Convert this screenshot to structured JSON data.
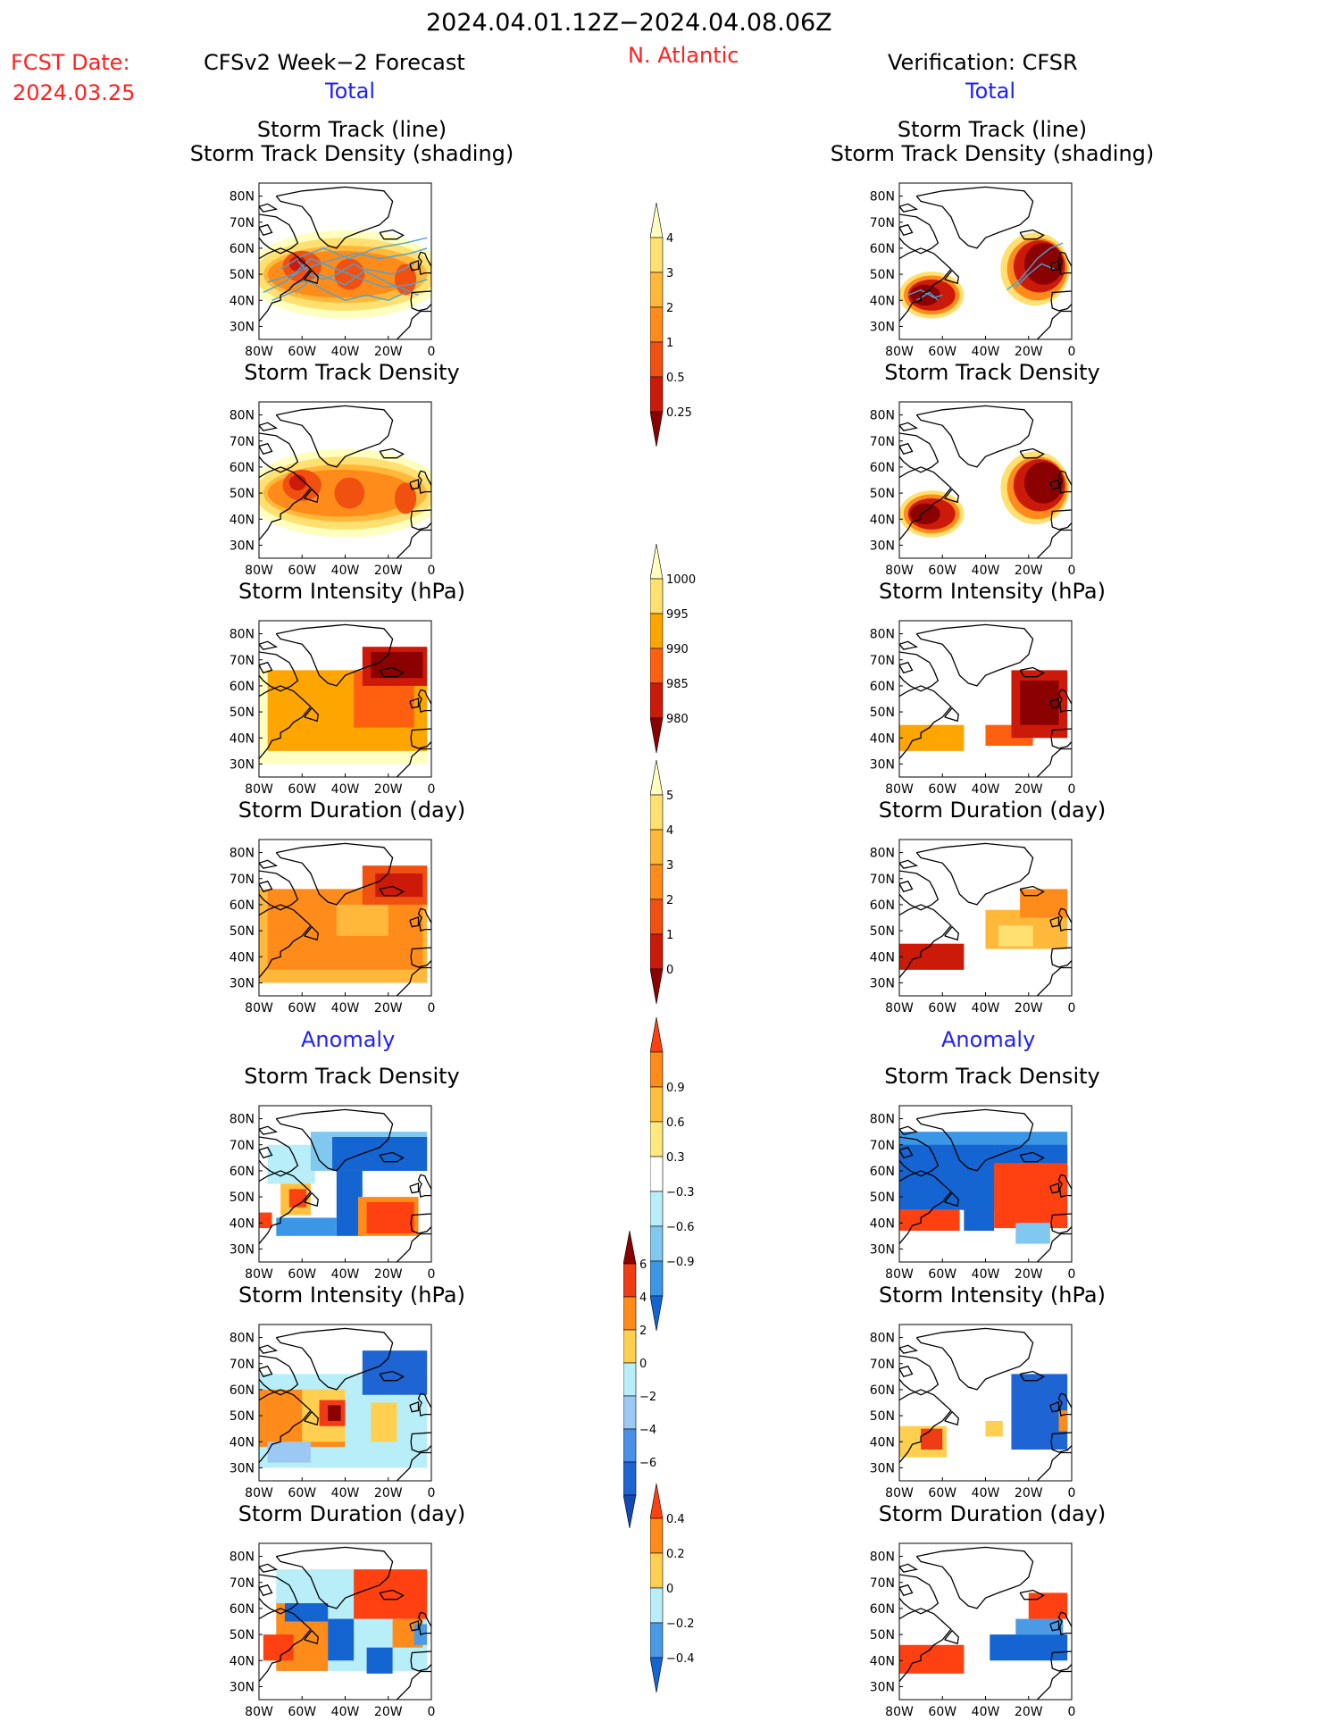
{
  "header": {
    "period": "2024.04.01.12Z−2024.04.08.06Z",
    "fcst_label": "FCST Date:",
    "fcst_date": "2024.03.25",
    "left_title": "CFSv2 Week−2 Forecast",
    "region": "N. Atlantic",
    "right_title": "Verification: CFSR",
    "total_label": "Total",
    "anomaly_label": "Anomaly"
  },
  "colors": {
    "accent_red": "#ff2020",
    "accent_blue": "#2020ff",
    "track_line": "#4aa3d6"
  },
  "panel_titles": {
    "track_line": "Storm Track (line)",
    "track_density_shading": "Storm Track Density (shading)",
    "track_density": "Storm Track Density",
    "intensity": "Storm Intensity (hPa)",
    "duration": "Storm Duration (day)"
  },
  "chart_data": {
    "type": "heatmap",
    "map_axes": {
      "xticks": [
        "80W",
        "60W",
        "40W",
        "20W",
        "0"
      ],
      "yticks": [
        "80N",
        "70N",
        "60N",
        "50N",
        "40N",
        "30N"
      ],
      "xlim": [
        -80,
        0
      ],
      "ylim": [
        25,
        85
      ]
    },
    "colorbars": [
      {
        "id": "density_total",
        "levels": [
          "0.25",
          "0.5",
          "1",
          "2",
          "3",
          "4"
        ],
        "colors": [
          "#ffffc0",
          "#ffe070",
          "#ffb83a",
          "#ff8c1a",
          "#f05010",
          "#cc1a0a",
          "#8b0000"
        ]
      },
      {
        "id": "intensity_total",
        "levels": [
          "1000",
          "995",
          "990",
          "985",
          "980"
        ],
        "colors": [
          "#ffffc0",
          "#ffe070",
          "#ffa500",
          "#ff6010",
          "#cc1a0a",
          "#8b0000"
        ]
      },
      {
        "id": "duration_total",
        "levels": [
          "0",
          "1",
          "2",
          "3",
          "4",
          "5"
        ],
        "colors": [
          "#ffffc0",
          "#ffe070",
          "#ffb83a",
          "#ff8c1a",
          "#f05010",
          "#cc1a0a",
          "#8b0000"
        ]
      },
      {
        "id": "density_anom",
        "levels": [
          "0.9",
          "0.6",
          "0.3",
          "−0.3",
          "−0.6",
          "−0.9"
        ],
        "colors": [
          "#ff4010",
          "#ff8c1a",
          "#ffc040",
          "#ffe880",
          "#ffffff",
          "#b8eef8",
          "#80c8f0",
          "#3c96e6",
          "#1464d2"
        ]
      },
      {
        "id": "intensity_anom",
        "levels": [
          "6",
          "4",
          "2",
          "0",
          "−2",
          "−4",
          "−6"
        ],
        "colors": [
          "#8b0000",
          "#f03c14",
          "#ff8c1a",
          "#ffd050",
          "#b8eef8",
          "#9cc8f4",
          "#4a90e6",
          "#1e64d2",
          "#1448b4"
        ]
      },
      {
        "id": "duration_anom",
        "levels": [
          "0.4",
          "0.2",
          "0",
          "−0.2",
          "−0.4"
        ],
        "colors": [
          "#ff4010",
          "#ff8c1a",
          "#ffd050",
          "#b8eef8",
          "#4a9ae6",
          "#1464d2"
        ]
      }
    ]
  }
}
